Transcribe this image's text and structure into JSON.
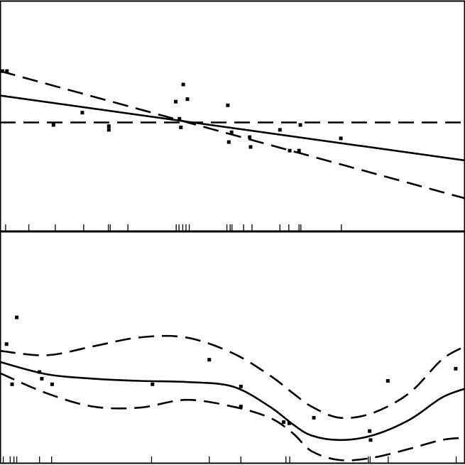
{
  "colors": {
    "ink": "#000000",
    "background": "#ffffff"
  },
  "chart_data": [
    {
      "type": "line",
      "panel": "top",
      "xlim": [
        0,
        100
      ],
      "ylim": [
        -1.0,
        1.0
      ],
      "grid": false,
      "legend": "none",
      "series": [
        {
          "style": "dashed",
          "x": [
            0,
            100
          ],
          "y": [
            0.42,
            -0.62
          ]
        },
        {
          "style": "solid",
          "x": [
            0,
            100
          ],
          "y": [
            0.22,
            -0.31
          ]
        },
        {
          "style": "dashed",
          "x": [
            0,
            100
          ],
          "y": [
            0.0,
            0.0
          ]
        }
      ],
      "points": [
        {
          "x": 0.5,
          "y": 0.42
        },
        {
          "x": 1.5,
          "y": 0.42
        },
        {
          "x": 11.5,
          "y": -0.02
        },
        {
          "x": 17.7,
          "y": 0.08
        },
        {
          "x": 23.4,
          "y": -0.03
        },
        {
          "x": 23.4,
          "y": -0.06
        },
        {
          "x": 37.8,
          "y": 0.17
        },
        {
          "x": 38.6,
          "y": 0.03
        },
        {
          "x": 38.9,
          "y": -0.04
        },
        {
          "x": 39.4,
          "y": 0.31
        },
        {
          "x": 40.3,
          "y": 0.19
        },
        {
          "x": 49.0,
          "y": 0.14
        },
        {
          "x": 49.2,
          "y": -0.16
        },
        {
          "x": 49.8,
          "y": -0.08
        },
        {
          "x": 53.7,
          "y": -0.12
        },
        {
          "x": 53.9,
          "y": -0.2
        },
        {
          "x": 60.2,
          "y": -0.06
        },
        {
          "x": 62.3,
          "y": -0.23
        },
        {
          "x": 64.3,
          "y": -0.23
        },
        {
          "x": 64.6,
          "y": -0.02
        },
        {
          "x": 73.3,
          "y": -0.13
        }
      ],
      "rug": [
        1.2,
        6.2,
        11.9,
        18.0,
        23.3,
        23.7,
        27.5,
        37.9,
        38.5,
        39.3,
        40.0,
        40.7,
        48.8,
        49.5,
        49.9,
        52.4,
        54.2,
        60.2,
        62.1,
        64.3,
        64.7,
        73.4
      ]
    },
    {
      "type": "line",
      "panel": "bottom",
      "xlim": [
        0,
        100
      ],
      "ylim": [
        -1.0,
        1.0
      ],
      "grid": false,
      "legend": "none",
      "series": [
        {
          "style": "dashed",
          "x": [
            0,
            10,
            20,
            30,
            40,
            50,
            58,
            63,
            67,
            73,
            80,
            88,
            95,
            100
          ],
          "y": [
            0.12,
            0.08,
            0.16,
            0.24,
            0.24,
            0.1,
            -0.1,
            -0.26,
            -0.38,
            -0.48,
            -0.44,
            -0.26,
            0.04,
            0.16
          ]
        },
        {
          "style": "solid",
          "x": [
            0,
            10,
            20,
            30,
            40,
            50,
            58,
            63,
            67,
            73,
            80,
            88,
            95,
            100
          ],
          "y": [
            0.02,
            -0.09,
            -0.13,
            -0.15,
            -0.16,
            -0.2,
            -0.38,
            -0.54,
            -0.64,
            -0.68,
            -0.64,
            -0.5,
            -0.3,
            -0.22
          ]
        },
        {
          "style": "dashed",
          "x": [
            0,
            10,
            20,
            30,
            40,
            50,
            58,
            63,
            67,
            73,
            80,
            88,
            95,
            100
          ],
          "y": [
            -0.08,
            -0.26,
            -0.38,
            -0.39,
            -0.32,
            -0.38,
            -0.48,
            -0.62,
            -0.78,
            -0.86,
            -0.84,
            -0.76,
            -0.68,
            -0.66
          ]
        }
      ],
      "points": [
        {
          "x": 1.4,
          "y": 0.18
        },
        {
          "x": 2.6,
          "y": -0.18
        },
        {
          "x": 3.6,
          "y": 0.42
        },
        {
          "x": 8.5,
          "y": -0.07
        },
        {
          "x": 9.0,
          "y": -0.13
        },
        {
          "x": 11.2,
          "y": -0.18
        },
        {
          "x": 32.8,
          "y": -0.18
        },
        {
          "x": 45.0,
          "y": 0.04
        },
        {
          "x": 51.8,
          "y": -0.2
        },
        {
          "x": 51.8,
          "y": -0.38
        },
        {
          "x": 61.0,
          "y": -0.52
        },
        {
          "x": 62.2,
          "y": -0.53
        },
        {
          "x": 67.5,
          "y": -0.48
        },
        {
          "x": 79.5,
          "y": -0.6
        },
        {
          "x": 79.7,
          "y": -0.68
        },
        {
          "x": 83.4,
          "y": -0.15
        },
        {
          "x": 98.0,
          "y": -0.04
        }
      ],
      "rug": [
        0.7,
        2.2,
        3.0,
        3.6,
        8.5,
        11.1,
        32.6,
        45.0,
        51.8,
        61.5,
        62.3,
        79.2,
        79.6,
        83.5,
        98.1
      ]
    }
  ]
}
